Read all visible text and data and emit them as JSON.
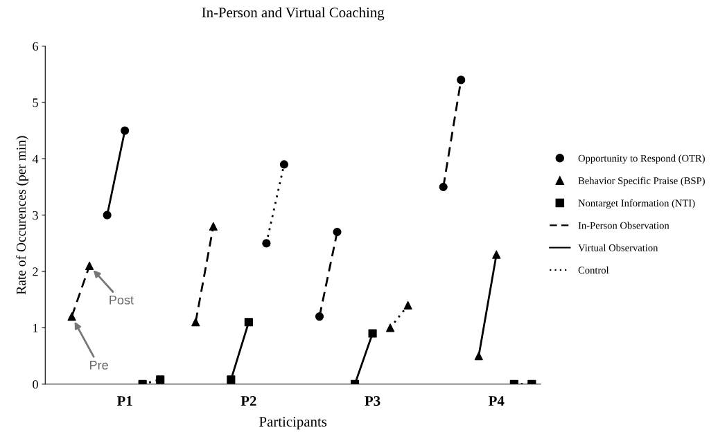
{
  "chart_data": {
    "type": "line",
    "title": "In-Person and Virtual Coaching",
    "xlabel": "Participants",
    "ylabel": "Rate of Occurences (per min)",
    "categories": [
      null,
      null,
      null,
      null,
      "P1",
      null,
      null,
      null,
      null,
      null,
      null,
      "P2",
      null,
      null,
      null,
      null,
      null,
      null,
      "P3",
      null,
      null,
      null,
      null,
      null,
      null,
      "P4",
      null,
      null
    ],
    "ylim": [
      0,
      6
    ],
    "yticks": [
      0,
      1,
      2,
      3,
      4,
      5,
      6
    ],
    "grid": false,
    "legend": "right",
    "series": [
      {
        "name": "Opportunity to Respond (OTR)",
        "type": "scatter",
        "marker": "circle",
        "color": "#000000",
        "values": [
          null,
          null,
          null,
          3.0,
          4.5,
          null,
          null,
          null,
          null,
          null,
          null,
          null,
          2.5,
          3.9,
          null,
          1.2,
          2.7,
          null,
          null,
          null,
          null,
          null,
          3.5,
          5.4,
          null,
          null,
          null,
          null
        ]
      },
      {
        "name": "Behavior Specific Praise (BSP)",
        "type": "scatter",
        "marker": "triangle",
        "color": "#000000",
        "values": [
          null,
          1.2,
          2.1,
          null,
          null,
          null,
          null,
          null,
          1.1,
          2.8,
          null,
          null,
          null,
          null,
          null,
          null,
          null,
          null,
          null,
          1.0,
          1.4,
          null,
          null,
          null,
          0.5,
          2.3,
          null,
          null
        ]
      },
      {
        "name": "Nontarget Information (NTI)",
        "type": "scatter",
        "marker": "square",
        "color": "#000000",
        "values": [
          null,
          null,
          null,
          null,
          null,
          0,
          0.08,
          null,
          null,
          null,
          0.08,
          1.1,
          null,
          null,
          null,
          null,
          null,
          0,
          0.9,
          null,
          null,
          null,
          null,
          null,
          null,
          null,
          0,
          0
        ]
      },
      {
        "name": "In-Person Observation",
        "line_style": "dashed",
        "color": "#000000",
        "values": [
          null,
          1.2,
          2.1,
          null,
          null,
          null,
          null,
          null,
          1.1,
          2.8,
          null,
          null,
          null,
          null,
          null,
          1.2,
          2.7,
          null,
          null,
          null,
          null,
          null,
          3.5,
          5.4,
          null,
          null,
          null,
          null
        ]
      },
      {
        "name": "Virtual Observation",
        "line_style": "solid",
        "color": "#000000",
        "values": [
          null,
          null,
          null,
          3.0,
          4.5,
          null,
          null,
          null,
          null,
          null,
          0.08,
          1.1,
          null,
          null,
          null,
          null,
          null,
          0,
          0.9,
          null,
          null,
          null,
          null,
          null,
          0.5,
          2.3,
          null,
          null
        ]
      },
      {
        "name": "Control",
        "line_style": "dotted",
        "color": "#000000",
        "values": [
          null,
          null,
          null,
          null,
          null,
          0,
          0.08,
          null,
          null,
          null,
          null,
          null,
          2.5,
          3.9,
          null,
          null,
          null,
          null,
          null,
          1.0,
          1.4,
          null,
          null,
          null,
          null,
          null,
          0,
          0
        ]
      }
    ],
    "annotations": [
      "Pre",
      "Post"
    ]
  }
}
